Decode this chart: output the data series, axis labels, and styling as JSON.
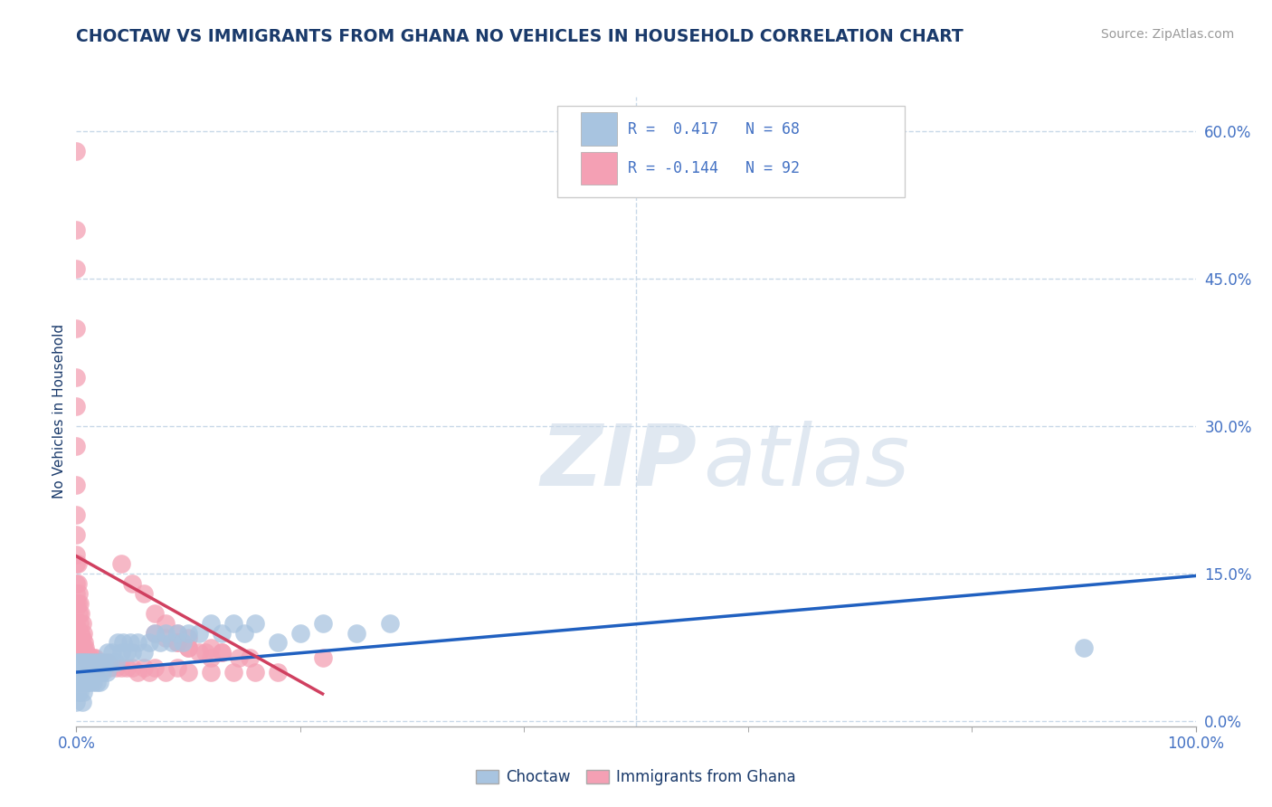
{
  "title": "CHOCTAW VS IMMIGRANTS FROM GHANA NO VEHICLES IN HOUSEHOLD CORRELATION CHART",
  "source_text": "Source: ZipAtlas.com",
  "ylabel": "No Vehicles in Household",
  "xlim": [
    0.0,
    1.0
  ],
  "ylim": [
    -0.005,
    0.635
  ],
  "yticks": [
    0.0,
    0.15,
    0.3,
    0.45,
    0.6
  ],
  "ytick_labels": [
    "0.0%",
    "15.0%",
    "30.0%",
    "45.0%",
    "60.0%"
  ],
  "xtick_left_label": "0.0%",
  "xtick_right_label": "100.0%",
  "watermark_zip": "ZIP",
  "watermark_atlas": "atlas",
  "legend_r1_text": "R =  0.417   N = 68",
  "legend_r2_text": "R = -0.144   N = 92",
  "choctaw_dot_color": "#a8c4e0",
  "ghana_dot_color": "#f4a0b4",
  "choctaw_line_color": "#2060c0",
  "ghana_line_color": "#d04060",
  "title_color": "#1a3a6b",
  "label_color": "#4472c4",
  "grid_color": "#c8d8e8",
  "legend_text_color": "#4472c4",
  "background_color": "#ffffff",
  "choctaw_trend_x": [
    0.0,
    1.0
  ],
  "choctaw_trend_y": [
    0.05,
    0.148
  ],
  "ghana_trend_x": [
    0.0,
    0.22
  ],
  "ghana_trend_y": [
    0.168,
    0.028
  ],
  "choctaw_x": [
    0.0,
    0.0,
    0.0,
    0.001,
    0.001,
    0.002,
    0.002,
    0.003,
    0.003,
    0.004,
    0.004,
    0.005,
    0.005,
    0.006,
    0.006,
    0.007,
    0.008,
    0.008,
    0.009,
    0.01,
    0.01,
    0.011,
    0.012,
    0.013,
    0.014,
    0.015,
    0.016,
    0.017,
    0.018,
    0.019,
    0.02,
    0.021,
    0.022,
    0.023,
    0.025,
    0.027,
    0.028,
    0.03,
    0.032,
    0.035,
    0.037,
    0.04,
    0.042,
    0.045,
    0.048,
    0.05,
    0.055,
    0.06,
    0.065,
    0.07,
    0.075,
    0.08,
    0.085,
    0.09,
    0.095,
    0.1,
    0.11,
    0.12,
    0.13,
    0.14,
    0.15,
    0.16,
    0.18,
    0.2,
    0.22,
    0.25,
    0.28,
    0.9
  ],
  "choctaw_y": [
    0.02,
    0.04,
    0.06,
    0.03,
    0.05,
    0.04,
    0.06,
    0.03,
    0.05,
    0.04,
    0.06,
    0.02,
    0.05,
    0.03,
    0.06,
    0.05,
    0.04,
    0.06,
    0.05,
    0.04,
    0.06,
    0.05,
    0.04,
    0.06,
    0.05,
    0.04,
    0.06,
    0.05,
    0.04,
    0.06,
    0.05,
    0.04,
    0.06,
    0.05,
    0.06,
    0.05,
    0.07,
    0.06,
    0.07,
    0.06,
    0.08,
    0.07,
    0.08,
    0.07,
    0.08,
    0.07,
    0.08,
    0.07,
    0.08,
    0.09,
    0.08,
    0.09,
    0.08,
    0.09,
    0.08,
    0.09,
    0.09,
    0.1,
    0.09,
    0.1,
    0.09,
    0.1,
    0.08,
    0.09,
    0.1,
    0.09,
    0.1,
    0.075
  ],
  "ghana_x": [
    0.0,
    0.0,
    0.0,
    0.0,
    0.0,
    0.0,
    0.0,
    0.0,
    0.0,
    0.0,
    0.0,
    0.0,
    0.0,
    0.0,
    0.0,
    0.0,
    0.0,
    0.0,
    0.0,
    0.0,
    0.0,
    0.0,
    0.001,
    0.001,
    0.001,
    0.002,
    0.002,
    0.003,
    0.003,
    0.004,
    0.004,
    0.005,
    0.005,
    0.006,
    0.006,
    0.007,
    0.007,
    0.008,
    0.008,
    0.009,
    0.01,
    0.01,
    0.011,
    0.012,
    0.013,
    0.014,
    0.015,
    0.016,
    0.017,
    0.018,
    0.02,
    0.022,
    0.025,
    0.028,
    0.03,
    0.035,
    0.04,
    0.045,
    0.05,
    0.055,
    0.06,
    0.065,
    0.07,
    0.08,
    0.09,
    0.1,
    0.12,
    0.14,
    0.16,
    0.18,
    0.07,
    0.08,
    0.09,
    0.1,
    0.115,
    0.13,
    0.145,
    0.155,
    0.09,
    0.1,
    0.11,
    0.12,
    0.04,
    0.05,
    0.06,
    0.07,
    0.08,
    0.09,
    0.1,
    0.12,
    0.13,
    0.22
  ],
  "ghana_y": [
    0.58,
    0.5,
    0.46,
    0.4,
    0.35,
    0.32,
    0.28,
    0.24,
    0.21,
    0.19,
    0.17,
    0.16,
    0.14,
    0.13,
    0.12,
    0.115,
    0.1,
    0.095,
    0.09,
    0.085,
    0.08,
    0.075,
    0.16,
    0.14,
    0.12,
    0.13,
    0.11,
    0.12,
    0.1,
    0.11,
    0.09,
    0.1,
    0.085,
    0.09,
    0.075,
    0.08,
    0.07,
    0.075,
    0.065,
    0.07,
    0.065,
    0.06,
    0.065,
    0.06,
    0.065,
    0.06,
    0.065,
    0.06,
    0.065,
    0.06,
    0.055,
    0.06,
    0.055,
    0.06,
    0.055,
    0.055,
    0.055,
    0.055,
    0.055,
    0.05,
    0.055,
    0.05,
    0.055,
    0.05,
    0.055,
    0.05,
    0.05,
    0.05,
    0.05,
    0.05,
    0.09,
    0.085,
    0.08,
    0.075,
    0.07,
    0.07,
    0.065,
    0.065,
    0.08,
    0.075,
    0.07,
    0.065,
    0.16,
    0.14,
    0.13,
    0.11,
    0.1,
    0.09,
    0.085,
    0.075,
    0.07,
    0.065
  ]
}
